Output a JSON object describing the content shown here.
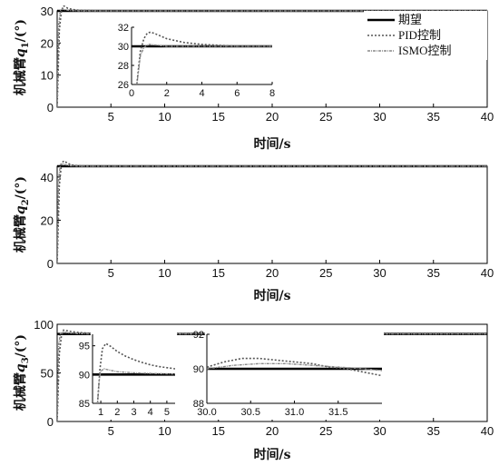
{
  "chart_data": [
    {
      "type": "line",
      "xlabel": "时间/s",
      "ylabel_prefix": "机械臂",
      "ylabel_var": "q",
      "ylabel_sub": "1",
      "ylabel_unit": "/(°)",
      "xlim": [
        0,
        40
      ],
      "ylim": [
        0,
        30
      ],
      "xticks": [
        "5",
        "10",
        "15",
        "20",
        "25",
        "30",
        "35",
        "40"
      ],
      "yticks": [
        "0",
        "10",
        "20",
        "30"
      ],
      "legend": {
        "position": "top-right",
        "entries": [
          "期望",
          "PID控制",
          "ISMO控制"
        ]
      },
      "series": [
        {
          "name": "期望",
          "x": [
            0,
            40
          ],
          "y": [
            30,
            30
          ]
        },
        {
          "name": "PID控制",
          "x": [
            0,
            0.2,
            0.4,
            0.6,
            0.8,
            1.0,
            1.5,
            2,
            3,
            4,
            6,
            8,
            40
          ],
          "y": [
            0,
            24,
            30,
            31.6,
            31.2,
            30.8,
            30.4,
            30.2,
            30.1,
            30.0,
            30.0,
            30.0,
            30.0
          ]
        },
        {
          "name": "ISMO控制",
          "x": [
            0,
            0.15,
            0.3,
            0.5,
            0.8,
            1.2,
            2,
            3,
            40
          ],
          "y": [
            0,
            26,
            30.2,
            30.6,
            30.3,
            30.1,
            30.0,
            30.0,
            30.0
          ]
        }
      ],
      "inset": {
        "xlim": [
          0,
          8
        ],
        "ylim": [
          26,
          32
        ],
        "xticks": [
          "0",
          "2",
          "4",
          "6",
          "8"
        ],
        "yticks": [
          "26",
          "28",
          "30",
          "32"
        ],
        "series": [
          {
            "name": "期望",
            "x": [
              0,
              8
            ],
            "y": [
              30,
              30
            ]
          },
          {
            "name": "PID控制",
            "x": [
              0.3,
              0.5,
              0.7,
              0.9,
              1.1,
              1.5,
              2,
              3,
              4,
              5,
              6,
              8
            ],
            "y": [
              26,
              29.5,
              30.8,
              31.4,
              31.5,
              31.2,
              30.8,
              30.4,
              30.2,
              30.1,
              30.0,
              30.0
            ]
          },
          {
            "name": "ISMO控制",
            "x": [
              0.3,
              0.5,
              0.7,
              1.0,
              1.5,
              2,
              3,
              8
            ],
            "y": [
              26,
              29.0,
              29.9,
              30.2,
              30.1,
              30.0,
              30.0,
              30.0
            ]
          }
        ]
      }
    },
    {
      "type": "line",
      "xlabel": "时间/s",
      "ylabel_prefix": "机械臂",
      "ylabel_var": "q",
      "ylabel_sub": "2",
      "ylabel_unit": "/(°)",
      "xlim": [
        0,
        40
      ],
      "ylim": [
        0,
        45
      ],
      "xticks": [
        "5",
        "10",
        "15",
        "20",
        "25",
        "30",
        "35",
        "40"
      ],
      "yticks": [
        "0",
        "20",
        "40"
      ],
      "series": [
        {
          "name": "期望",
          "x": [
            0,
            40
          ],
          "y": [
            45,
            45
          ]
        },
        {
          "name": "PID控制",
          "x": [
            0,
            0.2,
            0.4,
            0.6,
            0.9,
            1.3,
            2,
            3,
            40
          ],
          "y": [
            0,
            36,
            46,
            47.5,
            46.6,
            45.6,
            45.2,
            45.0,
            45.0
          ]
        },
        {
          "name": "ISMO控制",
          "x": [
            0,
            0.15,
            0.3,
            0.5,
            0.8,
            1.2,
            2,
            40
          ],
          "y": [
            0,
            40,
            45.8,
            46.3,
            45.6,
            45.2,
            45.0,
            45.0
          ]
        }
      ]
    },
    {
      "type": "line",
      "xlabel": "时间/s",
      "ylabel_prefix": "机械臂",
      "ylabel_var": "q",
      "ylabel_sub": "3",
      "ylabel_unit": "/(°)",
      "xlim": [
        0,
        40
      ],
      "ylim": [
        0,
        100
      ],
      "xticks": [
        "5",
        "10",
        "15",
        "20",
        "25",
        "30",
        "35",
        "40"
      ],
      "yticks": [
        "0",
        "50",
        "100"
      ],
      "series": [
        {
          "name": "期望",
          "x": [
            0,
            40
          ],
          "y": [
            90,
            90
          ]
        },
        {
          "name": "PID控制",
          "x": [
            0,
            0.2,
            0.4,
            0.6,
            0.9,
            1.3,
            2,
            3,
            5,
            40
          ],
          "y": [
            0,
            70,
            88,
            94,
            93.5,
            92.5,
            91.5,
            90.8,
            90.3,
            90.0
          ]
        },
        {
          "name": "ISMO控制",
          "x": [
            0,
            0.15,
            0.3,
            0.5,
            0.8,
            1.2,
            2,
            3,
            40
          ],
          "y": [
            0,
            80,
            90.5,
            92,
            91.5,
            91,
            90.4,
            90.1,
            90.0
          ]
        }
      ],
      "inset_left": {
        "xlim": [
          0.5,
          5.5
        ],
        "ylim": [
          85,
          97
        ],
        "xticks": [
          "1",
          "2",
          "3",
          "4",
          "5"
        ],
        "yticks": [
          "85",
          "90",
          "95"
        ],
        "series": [
          {
            "name": "期望",
            "x": [
              0.5,
              5.5
            ],
            "y": [
              90,
              90
            ]
          },
          {
            "name": "PID控制",
            "x": [
              0.8,
              0.95,
              1.1,
              1.3,
              1.6,
              2,
              2.5,
              3,
              3.5,
              4,
              4.5,
              5.5
            ],
            "y": [
              85,
              91,
              94.5,
              95.4,
              94.9,
              94.0,
              93.2,
              92.6,
              92.1,
              91.7,
              91.4,
              91.0
            ]
          },
          {
            "name": "ISMO控制",
            "x": [
              0.8,
              0.9,
              1.0,
              1.2,
              1.5,
              2,
              3,
              4,
              5.5
            ],
            "y": [
              85,
              89,
              90.6,
              91.0,
              90.8,
              90.5,
              90.3,
              90.2,
              90.1
            ]
          }
        ]
      },
      "inset_right": {
        "xlim": [
          30.0,
          32.0
        ],
        "ylim": [
          88,
          92
        ],
        "xticks": [
          "30.0",
          "30.5",
          "31.0",
          "31.5"
        ],
        "yticks": [
          "88",
          "90",
          "92"
        ],
        "series": [
          {
            "name": "期望",
            "x": [
              30.0,
              32.0
            ],
            "y": [
              90,
              90
            ]
          },
          {
            "name": "PID控制",
            "x": [
              30.0,
              30.2,
              30.4,
              30.6,
              30.8,
              31.0,
              31.2,
              31.4,
              31.6,
              31.8,
              32.0
            ],
            "y": [
              90.1,
              90.4,
              90.6,
              90.6,
              90.5,
              90.4,
              90.3,
              90.1,
              90.0,
              89.8,
              89.6
            ]
          },
          {
            "name": "ISMO控制",
            "x": [
              30.0,
              30.3,
              30.6,
              30.9,
              31.2,
              31.5,
              31.8,
              32.0
            ],
            "y": [
              90.0,
              90.2,
              90.3,
              90.3,
              90.2,
              90.1,
              90.0,
              89.9
            ]
          }
        ]
      }
    }
  ]
}
